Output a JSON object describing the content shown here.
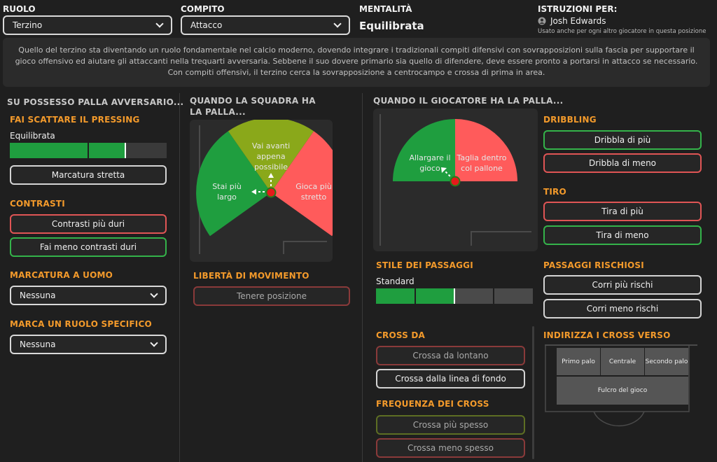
{
  "header": {
    "ruolo_label": "RUOLO",
    "ruolo_value": "Terzino",
    "compito_label": "COMPITO",
    "compito_value": "Attacco",
    "mentalita_label": "MENTALITÀ",
    "mentalita_value": "Equilibrata",
    "istruzioni_label": "ISTRUZIONI PER:",
    "player_name": "Josh Edwards",
    "player_note": "Usato anche per ogni altro giocatore in questa posizione",
    "description": "Quello del terzino sta diventando un ruolo fondamentale nel calcio moderno, dovendo integrare i tradizionali compiti difensivi con sovrapposizioni sulla fascia per supportare il gioco offensivo ed aiutare gli attaccanti nella trequarti avversaria. Sebbene il suo dovere primario sia quello di difendere, deve essere pronto a portarsi in attacco se necessario. Con compiti offensivi, il terzino cerca la sovrapposizione a centrocampo e crossa di prima in area."
  },
  "col1": {
    "title": "SU POSSESSO PALLA AVVERSARIO...",
    "pressing_title": "FAI SCATTARE IL PRESSING",
    "pressing_value": "Equilibrata",
    "pressing_level": 0.74,
    "marcatura_stretta": "Marcatura stretta",
    "contrasti_title": "CONTRASTI",
    "contrasti_duri": "Contrasti più duri",
    "contrasti_meno": "Fai meno contrasti duri",
    "marcatura_uomo_title": "MARCATURA A UOMO",
    "marcatura_uomo_value": "Nessuna",
    "marca_ruolo_title": "MARCA UN RUOLO SPECIFICO",
    "marca_ruolo_value": "Nessuna"
  },
  "col2": {
    "title": "QUANDO LA SQUADRA HA LA PALLA...",
    "gauge_left": "Stai più largo",
    "gauge_top": "Vai avanti appena possibile",
    "gauge_right": "Gioca più stretto",
    "liberta_title": "LIBERTÀ DI MOVIMENTO",
    "liberta_button": "Tenere posizione"
  },
  "col3": {
    "title": "QUANDO IL GIOCATORE HA LA PALLA...",
    "gauge_left": "Allargare il gioco",
    "gauge_right": "Taglia dentro col pallone",
    "passaggi_title": "STILE DEI PASSAGGI",
    "passaggi_value": "Standard",
    "passaggi_level": 0.5,
    "cross_da_title": "CROSS DA",
    "cross_lontano": "Crossa da lontano",
    "cross_fondo": "Crossa dalla linea di fondo",
    "freq_title": "FREQUENZA DEI CROSS",
    "freq_piu": "Crossa più spesso",
    "freq_meno": "Crossa meno spesso"
  },
  "col4": {
    "dribbling_title": "DRIBBLING",
    "dribbla_piu": "Dribbla di più",
    "dribbla_meno": "Dribbla di meno",
    "tiro_title": "TIRO",
    "tira_piu": "Tira di più",
    "tira_meno": "Tira di meno",
    "rischiosi_title": "PASSAGGI RISCHIOSI",
    "corri_piu": "Corri più rischi",
    "corri_meno": "Corri meno rischi",
    "indirizza_title": "INDIRIZZA I CROSS VERSO",
    "primo_palo": "Primo palo",
    "centrale": "Centrale",
    "secondo_palo": "Secondo palo",
    "fulcro": "Fulcro del gioco"
  },
  "colors": {
    "accent_orange": "#f39a2b",
    "green": "#1f9e3f",
    "red": "#ff5b5b",
    "olive": "#8aa81a"
  }
}
